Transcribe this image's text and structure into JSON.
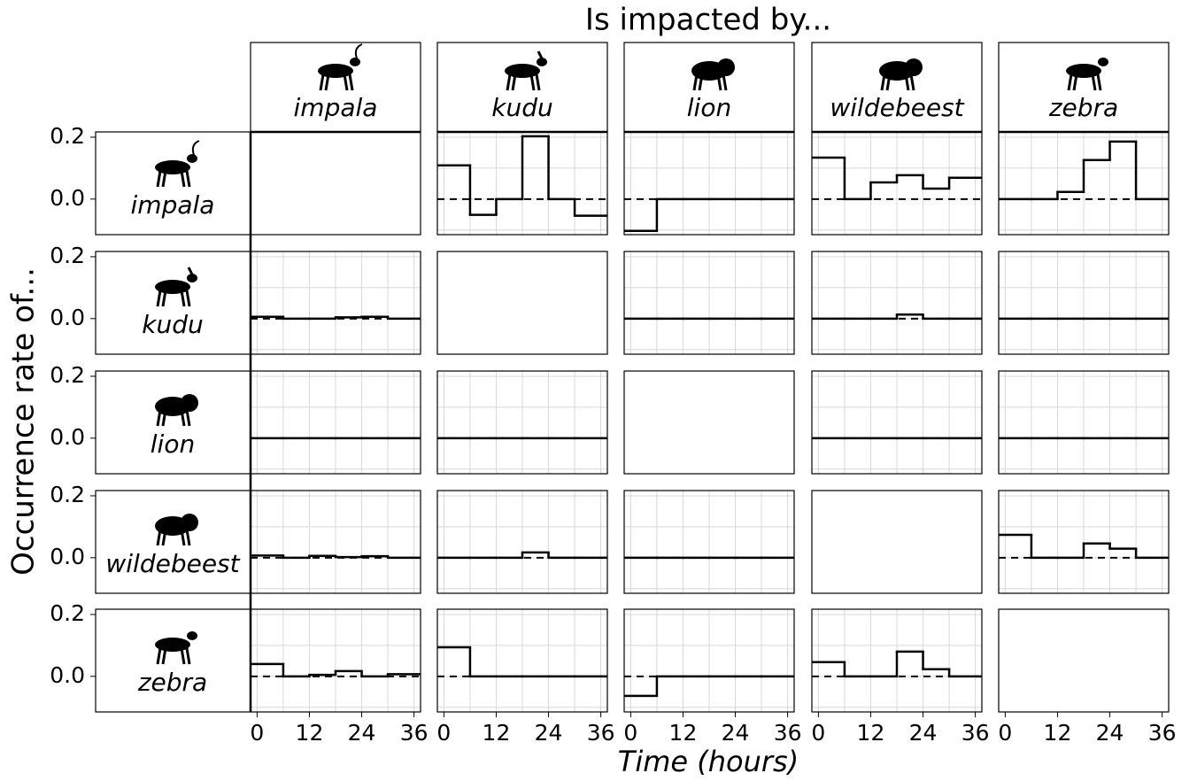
{
  "chart_data": {
    "type": "step",
    "title": "Is impacted by...",
    "ylabel": "Occurrence rate of...",
    "xlabel": "Time (hours)",
    "species": [
      "impala",
      "kudu",
      "lion",
      "wildebeest",
      "zebra"
    ],
    "bins": [
      0,
      6,
      12,
      18,
      24,
      30,
      36
    ],
    "xlim": [
      -1.5,
      37.5
    ],
    "xticks": [
      0,
      12,
      24,
      36
    ],
    "xgrid": [
      0,
      6,
      12,
      18,
      24,
      30,
      36
    ],
    "ylim": [
      -0.115,
      0.217
    ],
    "yticks": [
      {
        "value": 0,
        "label": "0.0"
      },
      {
        "value": 0.2,
        "label": "0.2"
      }
    ],
    "ygrid": [
      -0.1,
      0,
      0.1,
      0.2
    ],
    "hline": 0,
    "color": "#000000",
    "grid": true,
    "rows": [
      {
        "panels": [
          null,
          [
            0.109,
            -0.051,
            0,
            0.203,
            0,
            -0.054
          ],
          [
            -0.103,
            0,
            0,
            0,
            0,
            0
          ],
          [
            0.134,
            0,
            0.054,
            0.077,
            0.034,
            0.069
          ],
          [
            0,
            0,
            0.023,
            0.126,
            0.186,
            0
          ]
        ]
      },
      {
        "panels": [
          [
            0.006,
            0,
            0,
            0.004,
            0.006,
            0
          ],
          null,
          [
            0,
            0,
            0,
            0,
            0,
            0
          ],
          [
            0,
            0,
            0,
            0.013,
            0,
            0
          ],
          [
            0,
            0,
            0,
            0,
            0,
            0
          ]
        ]
      },
      {
        "panels": [
          [
            0,
            0,
            0,
            0,
            0,
            0
          ],
          [
            0,
            0,
            0,
            0,
            0,
            0
          ],
          null,
          [
            0,
            0,
            0,
            0,
            0,
            0
          ],
          [
            0,
            0,
            0,
            0,
            0,
            0
          ]
        ]
      },
      {
        "panels": [
          [
            0.007,
            0,
            0.006,
            0.002,
            0.005,
            0
          ],
          [
            0,
            0,
            0,
            0.017,
            0,
            0
          ],
          [
            0,
            0,
            0,
            0,
            0,
            0
          ],
          null,
          [
            0.074,
            0,
            0,
            0.046,
            0.029,
            0
          ]
        ]
      },
      {
        "panels": [
          [
            0.04,
            0,
            0.005,
            0.017,
            0,
            0.007
          ],
          [
            0.094,
            0,
            0,
            0,
            0,
            0
          ],
          [
            -0.063,
            0,
            0,
            0,
            0,
            0
          ],
          [
            0.046,
            0,
            0,
            0.08,
            0.023,
            0
          ],
          null
        ]
      }
    ]
  }
}
